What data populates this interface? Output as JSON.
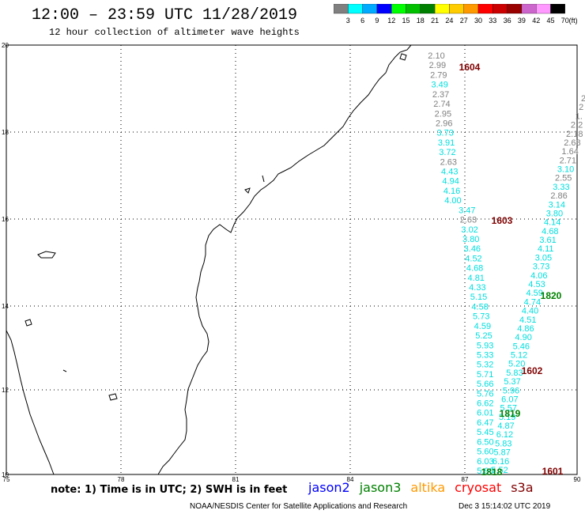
{
  "header": {
    "title": "12:00 – 23:59 UTC 11/28/2019",
    "subtitle": "12 hour collection of altimeter wave heights"
  },
  "colorbar": {
    "labels": [
      "3",
      "6",
      "9",
      "12",
      "15",
      "18",
      "21",
      "24",
      "27",
      "30",
      "33",
      "36",
      "39",
      "42",
      "45",
      "70",
      "(ft)"
    ],
    "colors": [
      "#808080",
      "#00ffff",
      "#00aaff",
      "#0000ff",
      "#00ff00",
      "#00c000",
      "#008000",
      "#ffff00",
      "#ffcc00",
      "#ff9900",
      "#ff0000",
      "#cc0000",
      "#990000",
      "#cc66cc",
      "#ff99ff",
      "#000000"
    ]
  },
  "axes": {
    "y_ticks": [
      "20",
      "18",
      "16",
      "14",
      "12",
      "10"
    ],
    "x_ticks": [
      "75",
      "78",
      "81",
      "84",
      "87",
      "90"
    ]
  },
  "passes": [
    {
      "id": "1604",
      "color": "#800000"
    },
    {
      "id": "1603",
      "color": "#800000"
    },
    {
      "id": "1820",
      "color": "#008000"
    },
    {
      "id": "1602",
      "color": "#800000"
    },
    {
      "id": "1819",
      "color": "#008000"
    },
    {
      "id": "1818",
      "color": "#008000"
    },
    {
      "id": "1601",
      "color": "#800000"
    }
  ],
  "track_left": [
    {
      "v": "2.10",
      "c": "#808080"
    },
    {
      "v": "2.99",
      "c": "#808080"
    },
    {
      "v": "2.79",
      "c": "#808080"
    },
    {
      "v": "3.49",
      "c": "#00dede"
    },
    {
      "v": "2.37",
      "c": "#808080"
    },
    {
      "v": "2.74",
      "c": "#808080"
    },
    {
      "v": "2.95",
      "c": "#808080"
    },
    {
      "v": "2.96",
      "c": "#808080"
    },
    {
      "v": "3.73",
      "c": "#00dede"
    },
    {
      "v": "3.91",
      "c": "#00dede"
    },
    {
      "v": "3.72",
      "c": "#00dede"
    },
    {
      "v": "2.63",
      "c": "#808080"
    },
    {
      "v": "4.43",
      "c": "#00dede"
    },
    {
      "v": "4.94",
      "c": "#00dede"
    },
    {
      "v": "4.16",
      "c": "#00dede"
    },
    {
      "v": "4.00",
      "c": "#00dede"
    },
    {
      "v": "3.47",
      "c": "#00dede"
    },
    {
      "v": "2.63",
      "c": "#808080"
    },
    {
      "v": "3.02",
      "c": "#00dede"
    },
    {
      "v": "3.80",
      "c": "#00dede"
    },
    {
      "v": "3.46",
      "c": "#00dede"
    },
    {
      "v": "4.52",
      "c": "#00dede"
    },
    {
      "v": "4.68",
      "c": "#00dede"
    },
    {
      "v": "4.81",
      "c": "#00dede"
    },
    {
      "v": "4.33",
      "c": "#00dede"
    },
    {
      "v": "5.15",
      "c": "#00dede"
    },
    {
      "v": "4.58",
      "c": "#00dede"
    },
    {
      "v": "5.73",
      "c": "#00dede"
    },
    {
      "v": "4.59",
      "c": "#00dede"
    },
    {
      "v": "5.25",
      "c": "#00dede"
    },
    {
      "v": "5.93",
      "c": "#00dede"
    },
    {
      "v": "5.33",
      "c": "#00dede"
    },
    {
      "v": "5.32",
      "c": "#00dede"
    },
    {
      "v": "5.71",
      "c": "#00dede"
    },
    {
      "v": "5.66",
      "c": "#00dede"
    },
    {
      "v": "5.76",
      "c": "#00dede"
    },
    {
      "v": "6.62",
      "c": "#00dede"
    },
    {
      "v": "6.01",
      "c": "#00dede"
    },
    {
      "v": "6.47",
      "c": "#00dede"
    },
    {
      "v": "5.45",
      "c": "#00dede"
    },
    {
      "v": "6.50",
      "c": "#00dede"
    },
    {
      "v": "5.60",
      "c": "#00dede"
    },
    {
      "v": "6.03",
      "c": "#00dede"
    },
    {
      "v": "5.90",
      "c": "#00dede"
    }
  ],
  "track_right": [
    {
      "v": "2",
      "c": "#808080"
    },
    {
      "v": "2",
      "c": "#808080"
    },
    {
      "v": "1.",
      "c": "#808080"
    },
    {
      "v": "2.2",
      "c": "#808080"
    },
    {
      "v": "2.18",
      "c": "#808080"
    },
    {
      "v": "2.68",
      "c": "#808080"
    },
    {
      "v": "1.64",
      "c": "#808080"
    },
    {
      "v": "2.71",
      "c": "#808080"
    },
    {
      "v": "3.10",
      "c": "#00dede"
    },
    {
      "v": "2.55",
      "c": "#808080"
    },
    {
      "v": "3.33",
      "c": "#00dede"
    },
    {
      "v": "2.86",
      "c": "#808080"
    },
    {
      "v": "3.14",
      "c": "#00dede"
    },
    {
      "v": "3.80",
      "c": "#00dede"
    },
    {
      "v": "4.14",
      "c": "#00dede"
    },
    {
      "v": "4.68",
      "c": "#00dede"
    },
    {
      "v": "3.61",
      "c": "#00dede"
    },
    {
      "v": "4.11",
      "c": "#00dede"
    },
    {
      "v": "3.05",
      "c": "#00dede"
    },
    {
      "v": "3.73",
      "c": "#00dede"
    },
    {
      "v": "4.06",
      "c": "#00dede"
    },
    {
      "v": "4.53",
      "c": "#00dede"
    },
    {
      "v": "4.59",
      "c": "#00dede"
    },
    {
      "v": "4.74",
      "c": "#00dede"
    },
    {
      "v": "4.40",
      "c": "#00dede"
    },
    {
      "v": "4.51",
      "c": "#00dede"
    },
    {
      "v": "4.86",
      "c": "#00dede"
    },
    {
      "v": "4.90",
      "c": "#00dede"
    },
    {
      "v": "5.46",
      "c": "#00dede"
    },
    {
      "v": "5.12",
      "c": "#00dede"
    },
    {
      "v": "5.20",
      "c": "#00dede"
    },
    {
      "v": "5.83",
      "c": "#00dede"
    },
    {
      "v": "5.37",
      "c": "#00dede"
    },
    {
      "v": "5.96",
      "c": "#00dede"
    },
    {
      "v": "6.07",
      "c": "#00dede"
    },
    {
      "v": "5.57",
      "c": "#00dede"
    },
    {
      "v": "5.19",
      "c": "#00dede"
    },
    {
      "v": "4.87",
      "c": "#00dede"
    },
    {
      "v": "6.12",
      "c": "#00dede"
    },
    {
      "v": "5.83",
      "c": "#00dede"
    },
    {
      "v": "5.87",
      "c": "#00dede"
    },
    {
      "v": "6.16",
      "c": "#00dede"
    },
    {
      "v": "5.52",
      "c": "#00dede"
    }
  ],
  "footer": {
    "note": "note: 1) Time is in UTC; 2) SWH is in feet",
    "satellites": [
      {
        "name": "jason2",
        "color": "#0000ff"
      },
      {
        "name": "jason3",
        "color": "#008000"
      },
      {
        "name": "altika",
        "color": "#ff9900"
      },
      {
        "name": "cryosat",
        "color": "#ff0000"
      },
      {
        "name": "s3a",
        "color": "#800000"
      }
    ],
    "credit": "NOAA/NESDIS Center for Satellite Applications and Research",
    "timestamp": "Dec  3 15:14:02 UTC 2019"
  }
}
